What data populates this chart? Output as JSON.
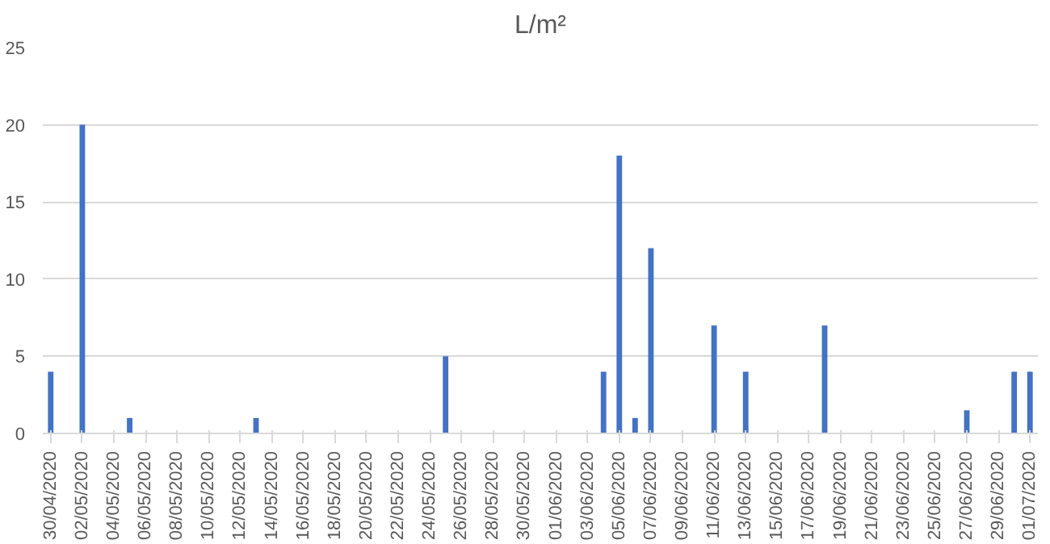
{
  "chart_data": {
    "type": "bar",
    "title": "L/m²",
    "categories": [
      "30/04/2020",
      null,
      "02/05/2020",
      null,
      "04/05/2020",
      null,
      "06/05/2020",
      null,
      "08/05/2020",
      null,
      "10/05/2020",
      null,
      "12/05/2020",
      null,
      "14/05/2020",
      null,
      "16/05/2020",
      null,
      "18/05/2020",
      null,
      "20/05/2020",
      null,
      "22/05/2020",
      null,
      "24/05/2020",
      null,
      "26/05/2020",
      null,
      "28/05/2020",
      null,
      "30/05/2020",
      null,
      "01/06/2020",
      null,
      "03/06/2020",
      null,
      "05/06/2020",
      null,
      "07/06/2020",
      null,
      "09/06/2020",
      null,
      "11/06/2020",
      null,
      "13/06/2020",
      null,
      "15/06/2020",
      null,
      "17/06/2020",
      null,
      "19/06/2020",
      null,
      "21/06/2020",
      null,
      "23/06/2020",
      null,
      "25/06/2020",
      null,
      "27/06/2020",
      null,
      "29/06/2020",
      null,
      "01/07/2020"
    ],
    "values": [
      4,
      0,
      20,
      0,
      0,
      1,
      0,
      0,
      0,
      0,
      0,
      0,
      0,
      1,
      0,
      0,
      0,
      0,
      0,
      0,
      0,
      0,
      0,
      0,
      0,
      5,
      0,
      0,
      0,
      0,
      0,
      0,
      0,
      0,
      0,
      4,
      18,
      1,
      12,
      0,
      0,
      0,
      7,
      0,
      4,
      0,
      0,
      0,
      0,
      7,
      0,
      0,
      0,
      0,
      0,
      0,
      0,
      0,
      1.5,
      0,
      0,
      4,
      4
    ],
    "color": "#4472c4",
    "ylim": [
      0,
      25
    ],
    "yticks": [
      0,
      5,
      10,
      15,
      20,
      25
    ],
    "grid": "y"
  }
}
